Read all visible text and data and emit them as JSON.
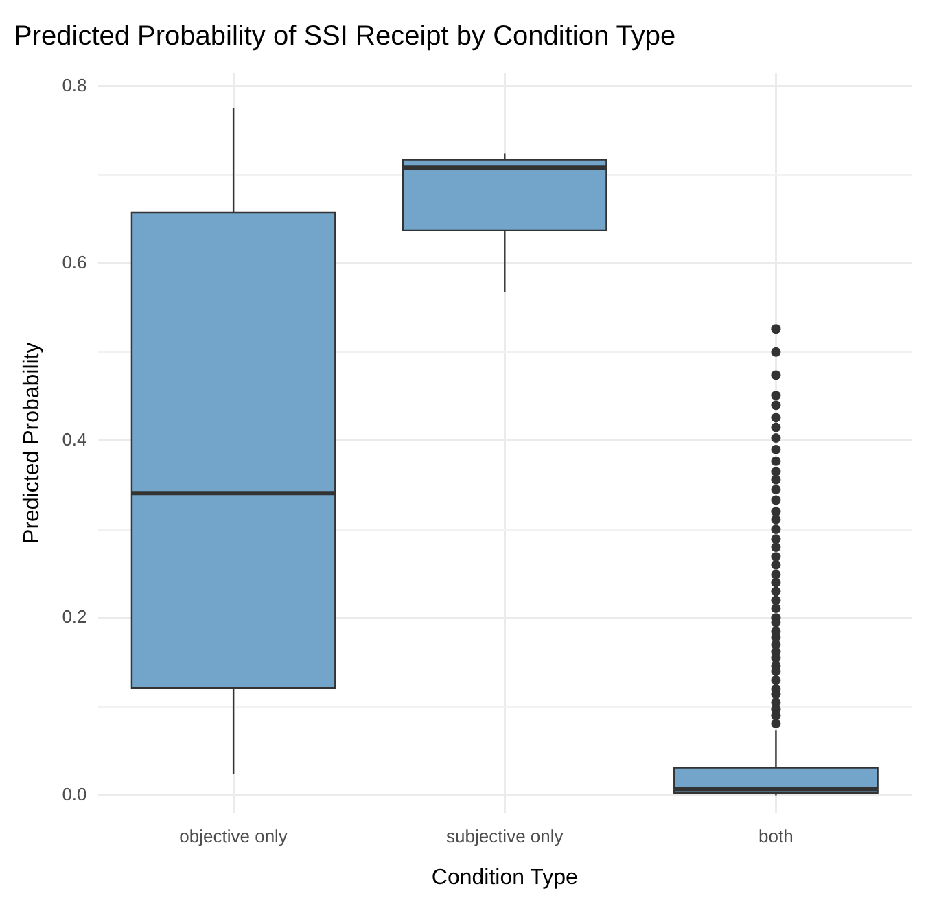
{
  "chart_data": {
    "type": "box",
    "title": "Predicted Probability of SSI Receipt by Condition Type",
    "xlabel": "Condition Type",
    "ylabel": "Predicted Probability",
    "categories": [
      "objective only",
      "subjective only",
      "both"
    ],
    "color": "#72a5c9",
    "boxes": [
      {
        "low": 0.024,
        "q1": 0.121,
        "median": 0.341,
        "q3": 0.657,
        "high": 0.775
      },
      {
        "low": 0.568,
        "q1": 0.637,
        "median": 0.708,
        "q3": 0.717,
        "high": 0.724
      },
      {
        "low": 0.0,
        "q1": 0.003,
        "median": 0.007,
        "q3": 0.031,
        "high": 0.073,
        "outliers": [
          0.526,
          0.5,
          0.474,
          0.451,
          0.44,
          0.426,
          0.415,
          0.403,
          0.39,
          0.377,
          0.365,
          0.356,
          0.345,
          0.333,
          0.32,
          0.311,
          0.3,
          0.289,
          0.28,
          0.269,
          0.26,
          0.249,
          0.24,
          0.23,
          0.22,
          0.211,
          0.2,
          0.195,
          0.185,
          0.178,
          0.17,
          0.162,
          0.155,
          0.146,
          0.14,
          0.13,
          0.12,
          0.114,
          0.105,
          0.097,
          0.09,
          0.081
        ]
      }
    ],
    "ylim": [
      -0.02,
      0.815
    ],
    "yticks": [
      {
        "value": 0,
        "label": "0.0"
      },
      {
        "value": 0.1,
        "label": null
      },
      0.2,
      {
        "value": 0.3,
        "label": null
      },
      0.4,
      {
        "value": 0.5,
        "label": null
      },
      0.6,
      {
        "value": 0.7,
        "label": null
      },
      0.8
    ],
    "grid": true,
    "legend": false
  }
}
